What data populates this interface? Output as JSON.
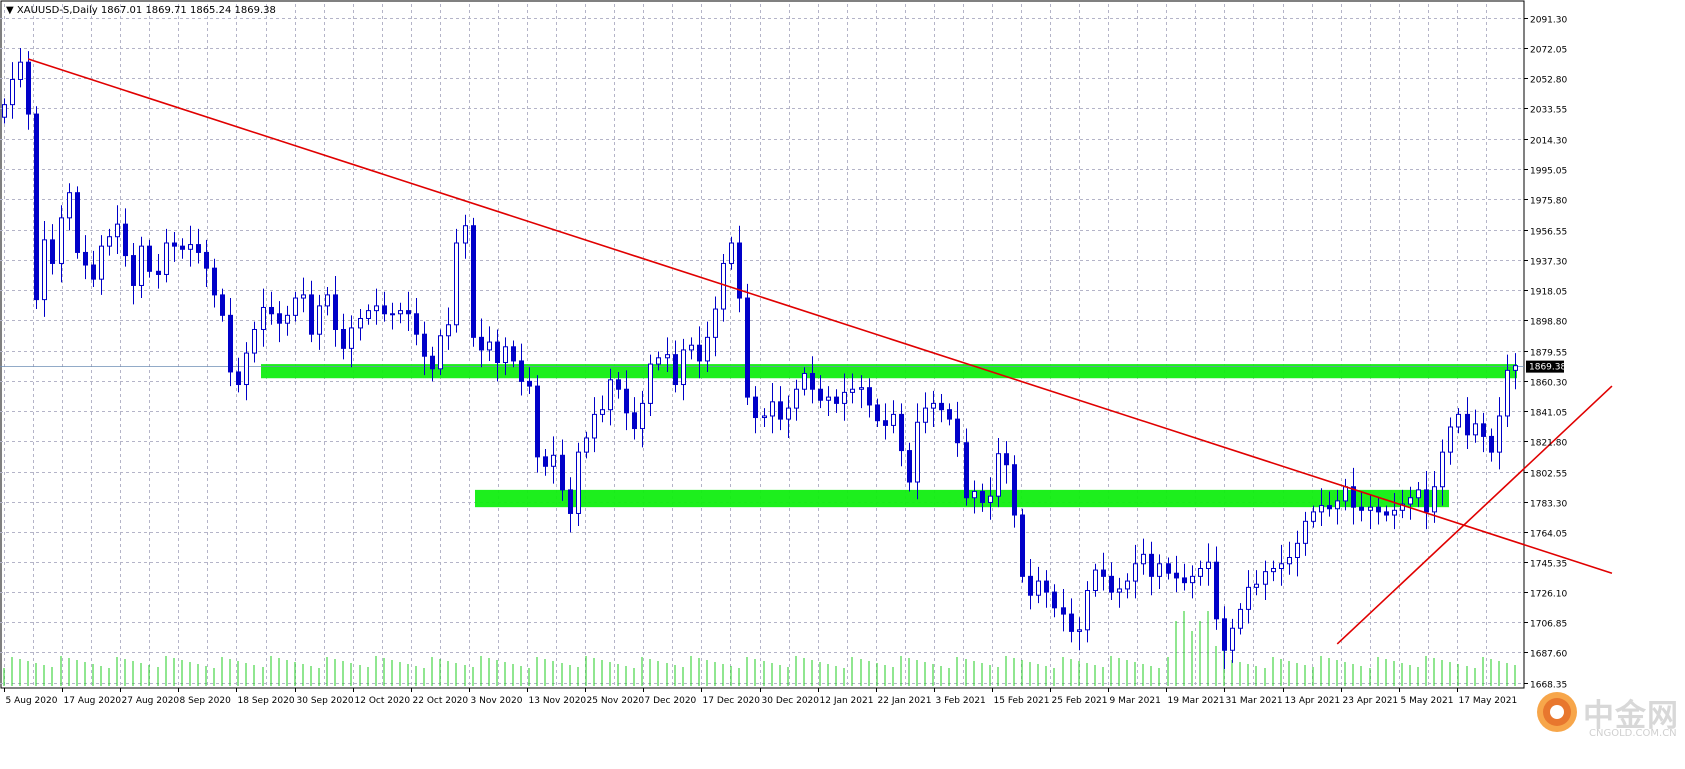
{
  "header": {
    "triangle": "▼",
    "symbol": "XAUUSD-S,Daily",
    "ohlc": "1867.01 1869.71 1865.24 1869.38"
  },
  "watermark": {
    "text": "中金网",
    "site": "CNGOLD.COM.CN"
  },
  "colors": {
    "grid": "#b4b4c8",
    "candle": "#0000c8",
    "trendline": "#e00000",
    "zone": "#11ee11",
    "volume": "#22cc22",
    "axis_text": "#000000"
  },
  "chart_data": {
    "type": "candlestick",
    "title": "",
    "symbol": "XAUUSD-S",
    "timeframe": "Daily",
    "ylim": [
      1665,
      2100
    ],
    "y_ticks": [
      "2091.30",
      "2072.05",
      "2052.80",
      "2033.55",
      "2014.30",
      "1995.05",
      "1975.80",
      "1956.55",
      "1937.30",
      "1918.05",
      "1898.80",
      "1879.55",
      "1860.30",
      "1841.05",
      "1821.80",
      "1802.55",
      "1783.30",
      "1764.05",
      "1745.35",
      "1726.10",
      "1706.85",
      "1687.60",
      "1668.35"
    ],
    "x_ticks": [
      "5 Aug 2020",
      "17 Aug 2020",
      "27 Aug 2020",
      "8 Sep 2020",
      "18 Sep 2020",
      "30 Sep 2020",
      "12 Oct 2020",
      "22 Oct 2020",
      "3 Nov 2020",
      "13 Nov 2020",
      "25 Nov 2020",
      "7 Dec 2020",
      "17 Dec 2020",
      "30 Dec 2020",
      "12 Jan 2021",
      "22 Jan 2021",
      "3 Feb 2021",
      "15 Feb 2021",
      "25 Feb 2021",
      "9 Mar 2021",
      "19 Mar 2021",
      "31 Mar 2021",
      "13 Apr 2021",
      "23 Apr 2021",
      "5 May 2021",
      "17 May 2021"
    ],
    "current_price": "1869.38",
    "grid": true,
    "closes": [
      2036,
      2052,
      2063,
      2030,
      1912,
      1950,
      1935,
      1964,
      1980,
      1942,
      1934,
      1925,
      1946,
      1952,
      1960,
      1940,
      1921,
      1946,
      1930,
      1928,
      1948,
      1946,
      1944,
      1947,
      1942,
      1932,
      1915,
      1902,
      1866,
      1858,
      1878,
      1893,
      1907,
      1903,
      1897,
      1902,
      1913,
      1915,
      1890,
      1908,
      1915,
      1893,
      1881,
      1894,
      1900,
      1905,
      1908,
      1903,
      1903,
      1905,
      1903,
      1890,
      1876,
      1868,
      1889,
      1896,
      1948,
      1959,
      1888,
      1880,
      1885,
      1872,
      1882,
      1873,
      1860,
      1857,
      1812,
      1806,
      1813,
      1791,
      1776,
      1815,
      1824,
      1839,
      1842,
      1861,
      1855,
      1840,
      1830,
      1846,
      1871,
      1875,
      1877,
      1858,
      1880,
      1883,
      1873,
      1888,
      1906,
      1935,
      1948,
      1913,
      1850,
      1837,
      1838,
      1847,
      1836,
      1843,
      1855,
      1865,
      1855,
      1848,
      1850,
      1846,
      1853,
      1855,
      1856,
      1845,
      1835,
      1832,
      1839,
      1816,
      1796,
      1834,
      1843,
      1846,
      1842,
      1836,
      1821,
      1786,
      1790,
      1783,
      1787,
      1814,
      1807,
      1775,
      1736,
      1724,
      1733,
      1726,
      1716,
      1712,
      1701,
      1702,
      1727,
      1740,
      1736,
      1726,
      1728,
      1733,
      1744,
      1750,
      1736,
      1744,
      1738,
      1735,
      1732,
      1736,
      1741,
      1745,
      1709,
      1689,
      1703,
      1715,
      1729,
      1731,
      1739,
      1741,
      1744,
      1748,
      1757,
      1771,
      1777,
      1781,
      1779,
      1784,
      1793,
      1780,
      1778,
      1780,
      1777,
      1775,
      1778,
      1782,
      1786,
      1791,
      1777,
      1793,
      1815,
      1831,
      1839,
      1826,
      1833,
      1825,
      1815,
      1838,
      1867,
      1870
    ],
    "volume_unit": "relative"
  }
}
